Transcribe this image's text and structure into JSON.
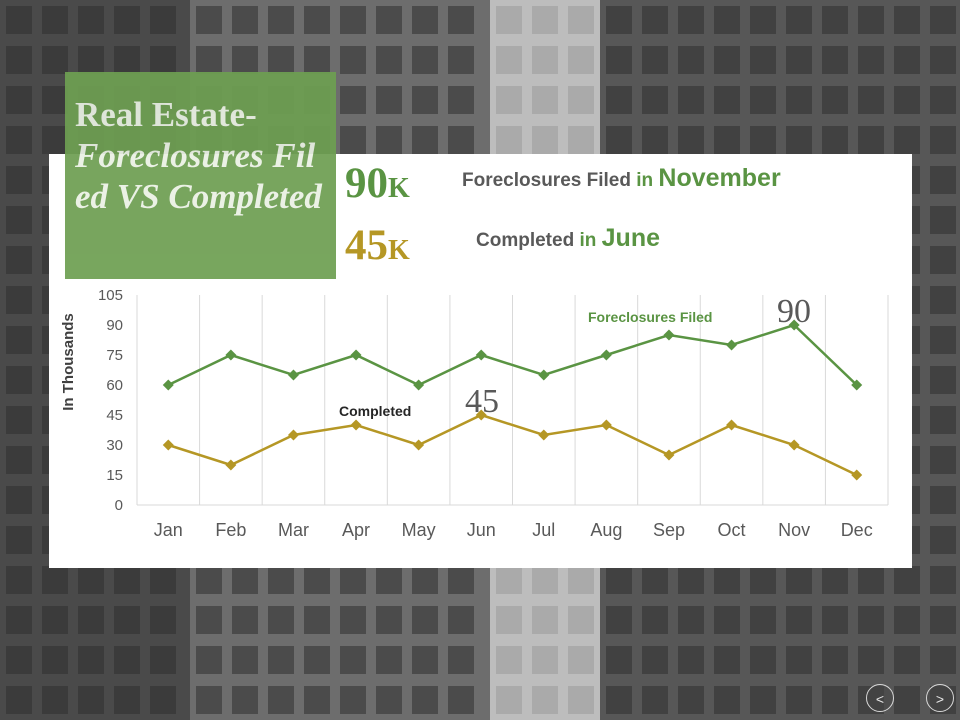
{
  "slide": {
    "title_line1": "Real Estate-",
    "title_line2": "Foreclosures Filed VS Completed"
  },
  "highlights": [
    {
      "value": "90",
      "unit": "K",
      "label": "Foreclosures Filed",
      "connector": "in",
      "accent": "November",
      "color": "#5a9443"
    },
    {
      "value": "45",
      "unit": "K",
      "label": "Completed",
      "connector": "in",
      "accent": "June",
      "color": "#b59725"
    }
  ],
  "nav": {
    "prev_label": "<",
    "next_label": ">"
  },
  "colors": {
    "filed": "#5a9443",
    "completed": "#b59725",
    "title_box": "#6e9f52"
  },
  "chart_data": {
    "type": "line",
    "categories": [
      "Jan",
      "Feb",
      "Mar",
      "Apr",
      "May",
      "Jun",
      "Jul",
      "Aug",
      "Sep",
      "Oct",
      "Nov",
      "Dec"
    ],
    "series": [
      {
        "name": "Foreclosures Filed",
        "values": [
          60,
          75,
          65,
          75,
          60,
          75,
          65,
          75,
          85,
          80,
          90,
          60
        ],
        "color": "#5a9443"
      },
      {
        "name": "Completed",
        "values": [
          30,
          20,
          35,
          40,
          30,
          45,
          35,
          40,
          25,
          40,
          30,
          15
        ],
        "color": "#b59725"
      }
    ],
    "ylabel": "In Thousands",
    "ylim": [
      0,
      105
    ],
    "yticks": [
      0,
      15,
      30,
      45,
      60,
      75,
      90,
      105
    ],
    "grid": "vertical",
    "marker": "diamond",
    "annotations": [
      {
        "text": "90",
        "series": 0,
        "index": 10
      },
      {
        "text": "45",
        "series": 1,
        "index": 5
      }
    ]
  }
}
